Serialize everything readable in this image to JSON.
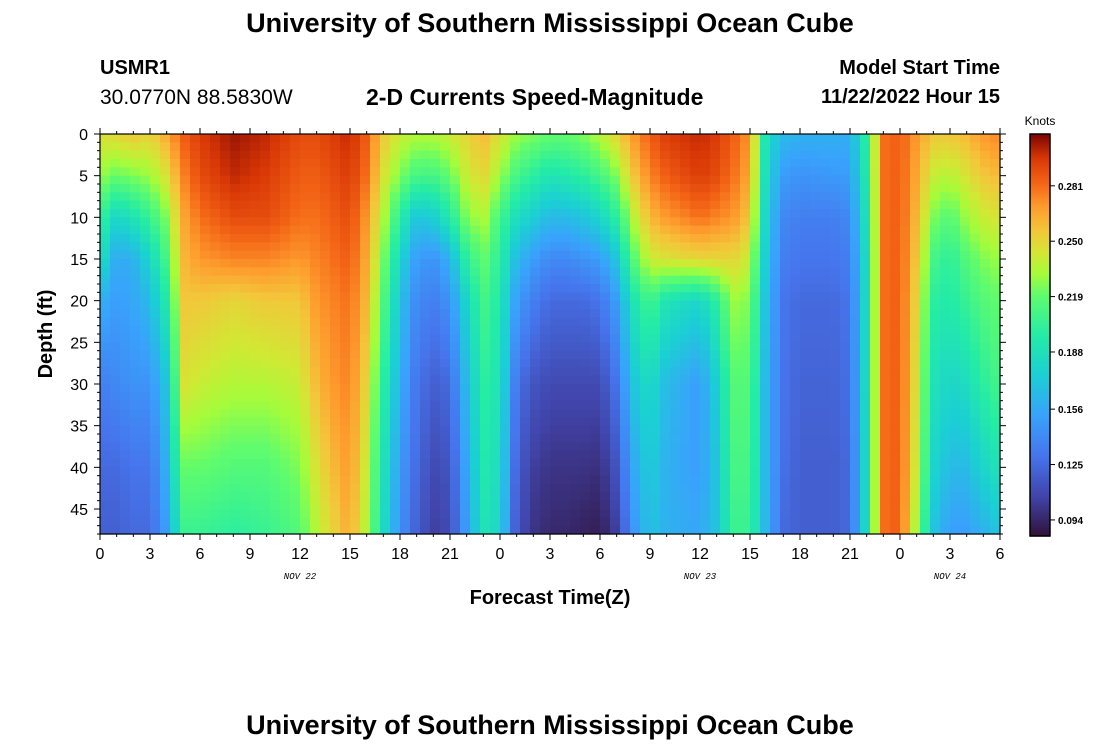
{
  "page": {
    "title": "University of Southern Mississippi Ocean Cube",
    "footer_title": "University of Southern Mississippi Ocean Cube"
  },
  "header": {
    "station_id": "USMR1",
    "location": "30.0770N  88.5830W",
    "model_start_label": "Model Start Time",
    "model_start_value": "11/22/2022 Hour 15"
  },
  "chart_data": {
    "type": "heatmap",
    "title": "2-D Currents Speed-Magnitude",
    "xlabel": "Forecast Time(Z)",
    "ylabel": "Depth (ft)",
    "x_hours_range": [
      0,
      54
    ],
    "x_ticks": [
      {
        "hour": 0,
        "label": "0"
      },
      {
        "hour": 3,
        "label": "3"
      },
      {
        "hour": 6,
        "label": "6"
      },
      {
        "hour": 9,
        "label": "9"
      },
      {
        "hour": 12,
        "label": "12"
      },
      {
        "hour": 15,
        "label": "15"
      },
      {
        "hour": 18,
        "label": "18"
      },
      {
        "hour": 21,
        "label": "21"
      },
      {
        "hour": 24,
        "label": "0"
      },
      {
        "hour": 27,
        "label": "3"
      },
      {
        "hour": 30,
        "label": "6"
      },
      {
        "hour": 33,
        "label": "9"
      },
      {
        "hour": 36,
        "label": "12"
      },
      {
        "hour": 39,
        "label": "15"
      },
      {
        "hour": 42,
        "label": "18"
      },
      {
        "hour": 45,
        "label": "21"
      },
      {
        "hour": 48,
        "label": "0"
      },
      {
        "hour": 51,
        "label": "3"
      },
      {
        "hour": 54,
        "label": "6"
      }
    ],
    "date_labels": [
      {
        "hour": 12,
        "label": "NOV 22"
      },
      {
        "hour": 36,
        "label": "NOV 23"
      },
      {
        "hour": 51,
        "label": "NOV 24"
      }
    ],
    "y_range_ft": [
      0,
      48
    ],
    "y_ticks": [
      0,
      5,
      10,
      15,
      20,
      25,
      30,
      35,
      40,
      45
    ],
    "colorbar": {
      "label": "Knots",
      "range": [
        0.085,
        0.31
      ],
      "tick_values": [
        0.094,
        0.125,
        0.156,
        0.188,
        0.219,
        0.25,
        0.281
      ],
      "tick_labels": [
        "0.094",
        "0.125",
        "0.156",
        "0.188",
        "0.219",
        "0.250",
        "0.281"
      ]
    },
    "profile_depths_ft": [
      0,
      5,
      10,
      15,
      20,
      30,
      40,
      48
    ],
    "profiles": [
      {
        "hour": 0,
        "speeds": [
          0.245,
          0.23,
          0.205,
          0.19,
          0.16,
          0.135,
          0.125,
          0.12
        ]
      },
      {
        "hour": 1,
        "speeds": [
          0.25,
          0.22,
          0.18,
          0.155,
          0.15,
          0.14,
          0.125,
          0.12
        ]
      },
      {
        "hour": 2,
        "speeds": [
          0.255,
          0.225,
          0.19,
          0.16,
          0.155,
          0.145,
          0.13,
          0.125
        ]
      },
      {
        "hour": 3,
        "speeds": [
          0.25,
          0.23,
          0.205,
          0.18,
          0.165,
          0.145,
          0.13,
          0.125
        ]
      },
      {
        "hour": 4,
        "speeds": [
          0.265,
          0.245,
          0.225,
          0.21,
          0.195,
          0.17,
          0.16,
          0.15
        ]
      },
      {
        "hour": 5,
        "speeds": [
          0.285,
          0.275,
          0.265,
          0.26,
          0.255,
          0.245,
          0.22,
          0.205
        ]
      },
      {
        "hour": 6,
        "speeds": [
          0.295,
          0.29,
          0.28,
          0.27,
          0.255,
          0.24,
          0.22,
          0.205
        ]
      },
      {
        "hour": 8,
        "speeds": [
          0.305,
          0.3,
          0.29,
          0.275,
          0.25,
          0.235,
          0.215,
          0.2
        ]
      },
      {
        "hour": 10,
        "speeds": [
          0.3,
          0.295,
          0.29,
          0.275,
          0.255,
          0.235,
          0.215,
          0.205
        ]
      },
      {
        "hour": 12,
        "speeds": [
          0.29,
          0.285,
          0.28,
          0.27,
          0.255,
          0.24,
          0.225,
          0.215
        ]
      },
      {
        "hour": 13,
        "speeds": [
          0.29,
          0.285,
          0.28,
          0.275,
          0.27,
          0.26,
          0.245,
          0.235
        ]
      },
      {
        "hour": 14,
        "speeds": [
          0.295,
          0.29,
          0.285,
          0.28,
          0.275,
          0.27,
          0.26,
          0.25
        ]
      },
      {
        "hour": 15,
        "speeds": [
          0.3,
          0.295,
          0.29,
          0.285,
          0.28,
          0.275,
          0.27,
          0.265
        ]
      },
      {
        "hour": 16,
        "speeds": [
          0.285,
          0.28,
          0.27,
          0.265,
          0.26,
          0.25,
          0.24,
          0.235
        ]
      },
      {
        "hour": 17,
        "speeds": [
          0.255,
          0.245,
          0.235,
          0.225,
          0.215,
          0.2,
          0.19,
          0.185
        ]
      },
      {
        "hour": 18,
        "speeds": [
          0.24,
          0.225,
          0.2,
          0.18,
          0.17,
          0.16,
          0.15,
          0.145
        ]
      },
      {
        "hour": 19,
        "speeds": [
          0.235,
          0.21,
          0.17,
          0.15,
          0.14,
          0.13,
          0.125,
          0.12
        ]
      },
      {
        "hour": 20,
        "speeds": [
          0.235,
          0.21,
          0.175,
          0.145,
          0.135,
          0.12,
          0.11,
          0.105
        ]
      },
      {
        "hour": 21,
        "speeds": [
          0.24,
          0.22,
          0.195,
          0.16,
          0.145,
          0.125,
          0.115,
          0.11
        ]
      },
      {
        "hour": 22,
        "speeds": [
          0.25,
          0.24,
          0.225,
          0.2,
          0.18,
          0.165,
          0.155,
          0.15
        ]
      },
      {
        "hour": 23,
        "speeds": [
          0.26,
          0.25,
          0.235,
          0.22,
          0.21,
          0.2,
          0.195,
          0.19
        ]
      },
      {
        "hour": 24,
        "speeds": [
          0.245,
          0.23,
          0.21,
          0.2,
          0.195,
          0.19,
          0.185,
          0.18
        ]
      },
      {
        "hour": 25,
        "speeds": [
          0.23,
          0.21,
          0.185,
          0.165,
          0.15,
          0.13,
          0.12,
          0.115
        ]
      },
      {
        "hour": 26,
        "speeds": [
          0.225,
          0.2,
          0.175,
          0.15,
          0.135,
          0.115,
          0.105,
          0.1
        ]
      },
      {
        "hour": 27,
        "speeds": [
          0.22,
          0.19,
          0.165,
          0.14,
          0.125,
          0.11,
          0.1,
          0.095
        ]
      },
      {
        "hour": 28,
        "speeds": [
          0.22,
          0.195,
          0.165,
          0.14,
          0.125,
          0.11,
          0.1,
          0.095
        ]
      },
      {
        "hour": 29,
        "speeds": [
          0.225,
          0.2,
          0.17,
          0.145,
          0.125,
          0.11,
          0.1,
          0.092
        ]
      },
      {
        "hour": 30,
        "speeds": [
          0.235,
          0.21,
          0.18,
          0.15,
          0.13,
          0.11,
          0.098,
          0.09
        ]
      },
      {
        "hour": 31,
        "speeds": [
          0.25,
          0.225,
          0.2,
          0.17,
          0.15,
          0.13,
          0.115,
          0.105
        ]
      },
      {
        "hour": 32,
        "speeds": [
          0.27,
          0.255,
          0.235,
          0.215,
          0.19,
          0.17,
          0.155,
          0.145
        ]
      },
      {
        "hour": 33,
        "speeds": [
          0.285,
          0.275,
          0.26,
          0.24,
          0.21,
          0.185,
          0.175,
          0.17
        ]
      },
      {
        "hour": 34,
        "speeds": [
          0.295,
          0.285,
          0.27,
          0.245,
          0.19,
          0.165,
          0.16,
          0.16
        ]
      },
      {
        "hour": 36,
        "speeds": [
          0.3,
          0.295,
          0.28,
          0.25,
          0.18,
          0.15,
          0.15,
          0.155
        ]
      },
      {
        "hour": 37,
        "speeds": [
          0.295,
          0.29,
          0.275,
          0.25,
          0.2,
          0.175,
          0.17,
          0.17
        ]
      },
      {
        "hour": 38,
        "speeds": [
          0.285,
          0.28,
          0.27,
          0.25,
          0.23,
          0.215,
          0.21,
          0.205
        ]
      },
      {
        "hour": 39,
        "speeds": [
          0.27,
          0.265,
          0.255,
          0.24,
          0.225,
          0.215,
          0.21,
          0.205
        ]
      },
      {
        "hour": 40,
        "speeds": [
          0.185,
          0.18,
          0.175,
          0.17,
          0.165,
          0.16,
          0.16,
          0.16
        ]
      },
      {
        "hour": 41,
        "speeds": [
          0.165,
          0.15,
          0.14,
          0.135,
          0.13,
          0.13,
          0.128,
          0.125
        ]
      },
      {
        "hour": 42,
        "speeds": [
          0.16,
          0.145,
          0.135,
          0.13,
          0.125,
          0.122,
          0.12,
          0.12
        ]
      },
      {
        "hour": 44,
        "speeds": [
          0.16,
          0.148,
          0.135,
          0.13,
          0.125,
          0.122,
          0.12,
          0.12
        ]
      },
      {
        "hour": 45,
        "speeds": [
          0.158,
          0.15,
          0.14,
          0.135,
          0.13,
          0.128,
          0.125,
          0.125
        ]
      },
      {
        "hour": 46,
        "speeds": [
          0.2,
          0.195,
          0.19,
          0.185,
          0.185,
          0.185,
          0.185,
          0.185
        ]
      },
      {
        "hour": 47,
        "speeds": [
          0.28,
          0.28,
          0.28,
          0.28,
          0.28,
          0.28,
          0.28,
          0.28
        ]
      },
      {
        "hour": 48,
        "speeds": [
          0.285,
          0.285,
          0.285,
          0.285,
          0.285,
          0.285,
          0.285,
          0.285
        ]
      },
      {
        "hour": 49,
        "speeds": [
          0.27,
          0.265,
          0.26,
          0.255,
          0.25,
          0.245,
          0.24,
          0.23
        ]
      },
      {
        "hour": 50,
        "speeds": [
          0.255,
          0.24,
          0.225,
          0.21,
          0.2,
          0.19,
          0.18,
          0.17
        ]
      },
      {
        "hour": 51,
        "speeds": [
          0.255,
          0.235,
          0.215,
          0.2,
          0.195,
          0.18,
          0.165,
          0.15
        ]
      },
      {
        "hour": 52,
        "speeds": [
          0.26,
          0.245,
          0.23,
          0.215,
          0.205,
          0.185,
          0.165,
          0.15
        ]
      },
      {
        "hour": 53,
        "speeds": [
          0.27,
          0.255,
          0.24,
          0.225,
          0.215,
          0.2,
          0.18,
          0.16
        ]
      },
      {
        "hour": 54,
        "speeds": [
          0.275,
          0.26,
          0.245,
          0.23,
          0.22,
          0.21,
          0.19,
          0.17
        ]
      }
    ]
  }
}
